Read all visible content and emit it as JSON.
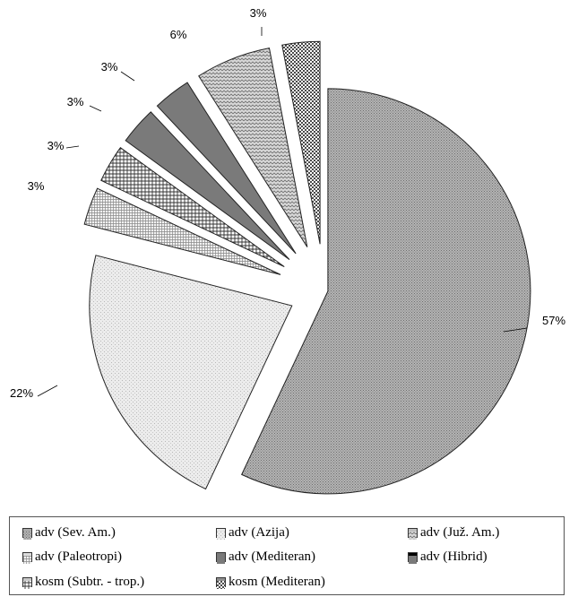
{
  "chart_data": {
    "type": "pie",
    "exploded": true,
    "slices": [
      {
        "label": "adv (Sev. Am.)",
        "value": 57,
        "value_label": "57%",
        "fill": "#a9a9a9",
        "pattern": "dense-dots"
      },
      {
        "label": "adv (Azija)",
        "value": 22,
        "value_label": "22%",
        "fill": "#e6e6e6",
        "pattern": "light-dots"
      },
      {
        "label": "adv (Paleotropi)",
        "value": 3,
        "value_label": "3%",
        "fill": "#dcdcdc",
        "pattern": "small-grid"
      },
      {
        "label": "kosm (Subtr. - trop.)",
        "value": 3,
        "value_label": "3%",
        "fill": "#c8c8c8",
        "pattern": "grid"
      },
      {
        "label": "adv (Mediteran)",
        "value": 3,
        "value_label": "3%",
        "fill": "#7a7a7a",
        "pattern": "solid"
      },
      {
        "label": "adv (Hibrid)",
        "value": 3,
        "value_label": "3%",
        "fill": "#000000",
        "pattern": "solid"
      },
      {
        "label": "adv (Juž. Am.)",
        "value": 6,
        "value_label": "6%",
        "fill": "#bdbdbd",
        "pattern": "zigzag"
      },
      {
        "label": "kosm (Mediteran)",
        "value": 3,
        "value_label": "3%",
        "fill": "#8f8f8f",
        "pattern": "checker"
      }
    ],
    "legend": {
      "placement": "bottom",
      "items": [
        {
          "label": "adv (Sev. Am.)",
          "fill": "#a9a9a9",
          "pattern": "dense-dots"
        },
        {
          "label": "adv (Azija)",
          "fill": "#e6e6e6",
          "pattern": "light-dots"
        },
        {
          "label": "adv (Juž. Am.)",
          "fill": "#bdbdbd",
          "pattern": "zigzag"
        },
        {
          "label": "adv (Paleotropi)",
          "fill": "#dcdcdc",
          "pattern": "small-grid"
        },
        {
          "label": "adv (Mediteran)",
          "fill": "#7a7a7a",
          "pattern": "solid"
        },
        {
          "label": "adv (Hibrid)",
          "fill": "#000000",
          "pattern": "solid"
        },
        {
          "label": "kosm (Subtr. - trop.)",
          "fill": "#c8c8c8",
          "pattern": "grid"
        },
        {
          "label": "kosm (Mediteran)",
          "fill": "#8f8f8f",
          "pattern": "checker"
        }
      ]
    }
  }
}
